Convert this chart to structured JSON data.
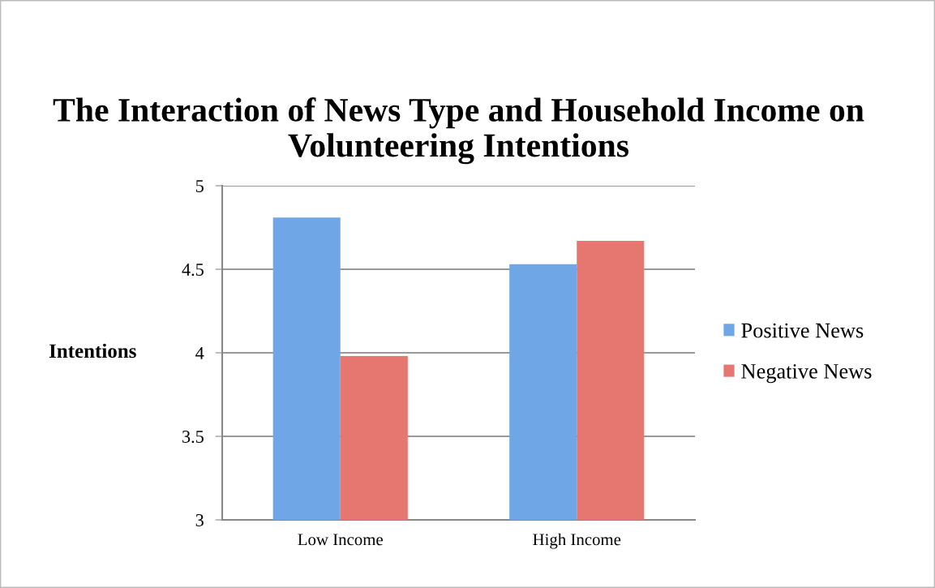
{
  "chart_data": {
    "type": "bar",
    "title": "The Interaction of News Type and Household Income on Volunteering Intentions",
    "ylabel": "Intentions",
    "categories": [
      "Low Income",
      "High Income"
    ],
    "series": [
      {
        "name": "Positive News",
        "color": "#6ea6e6",
        "values": [
          4.81,
          4.53
        ]
      },
      {
        "name": "Negative News",
        "color": "#e67670",
        "values": [
          3.98,
          4.67
        ]
      }
    ],
    "ylim": [
      3,
      5
    ],
    "yticks": [
      3,
      3.5,
      4,
      4.5,
      5
    ],
    "grid": "y",
    "legend": "right"
  }
}
